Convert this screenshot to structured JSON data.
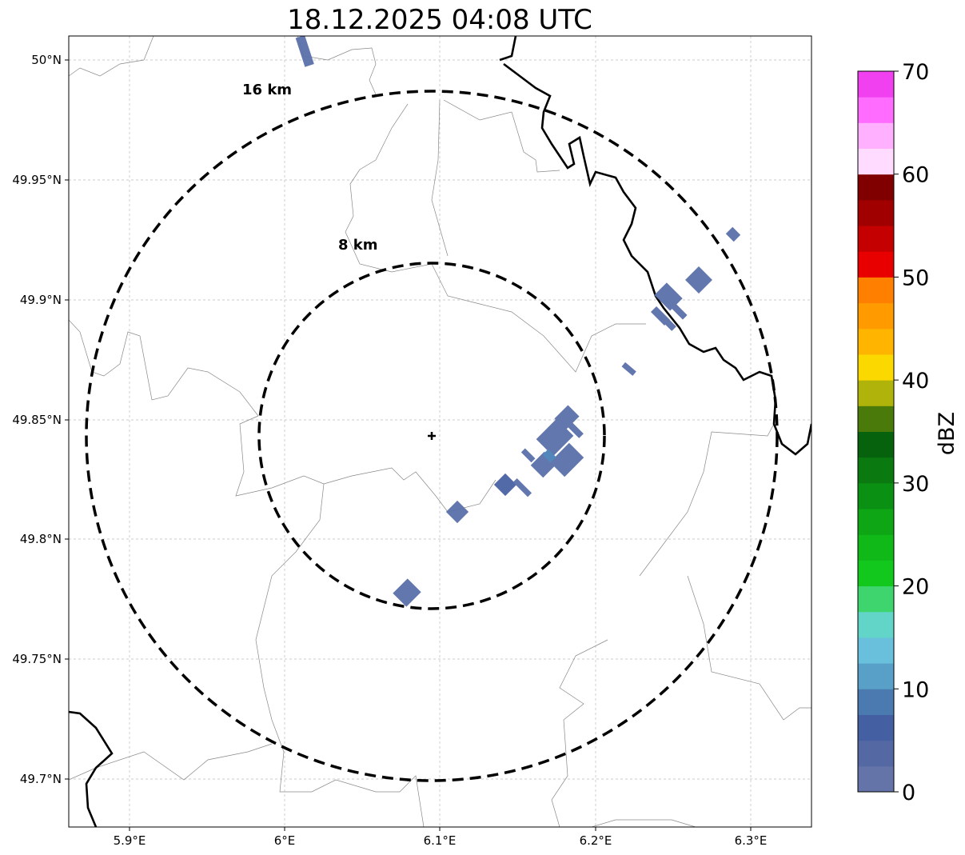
{
  "title": "18.12.2025 04:08 UTC",
  "map": {
    "lon_ticks": [
      "5.9°E",
      "6°E",
      "6.1°E",
      "6.2°E",
      "6.3°E"
    ],
    "lat_ticks": [
      "50°N",
      "49.95°N",
      "49.9°N",
      "49.85°N",
      "49.8°N",
      "49.75°N",
      "49.7°N"
    ],
    "range_rings": [
      "8 km",
      "16 km"
    ],
    "radar_center": {
      "lon": 6.096,
      "lat": 49.843
    }
  },
  "colorbar": {
    "label": "dBZ",
    "ticks": [
      "0",
      "10",
      "20",
      "30",
      "40",
      "50",
      "60",
      "70"
    ],
    "range": [
      0,
      70
    ],
    "step": 2.5,
    "colors": [
      "#6474a8",
      "#5468a4",
      "#4560a2",
      "#4a7ab0",
      "#58a0c8",
      "#68c0dc",
      "#62d4c8",
      "#3ed46e",
      "#12c81c",
      "#10b818",
      "#0ea614",
      "#0a9012",
      "#0a7a10",
      "#06620c",
      "#4a7a0a",
      "#b0b40a",
      "#fad800",
      "#ffb400",
      "#ff9a00",
      "#ff8000",
      "#e80000",
      "#c40000",
      "#a00000",
      "#800000",
      "#ffdcff",
      "#ffb0ff",
      "#ff6cff",
      "#f040f0"
    ]
  }
}
